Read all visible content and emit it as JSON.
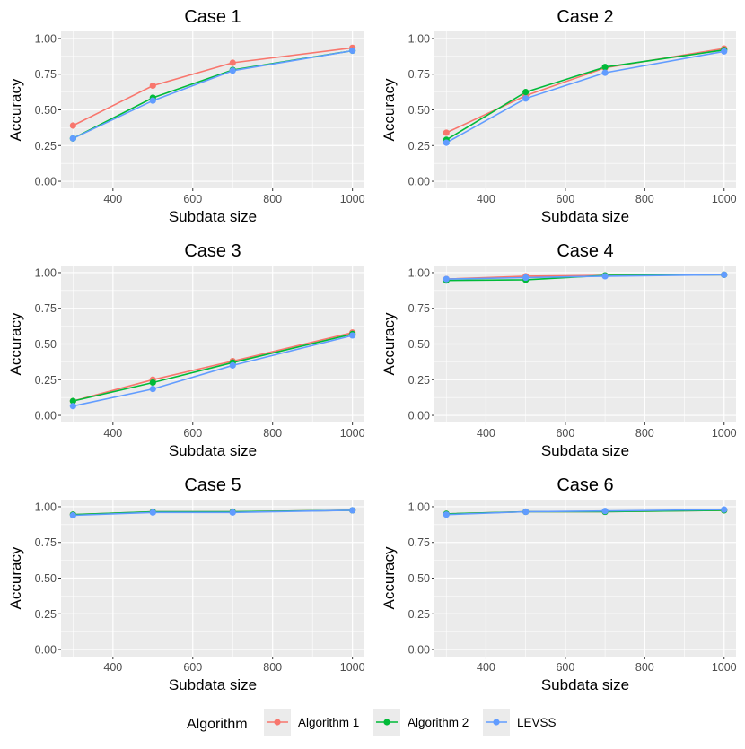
{
  "chart_data": {
    "type": "line",
    "layout": "facet-grid 3 rows x 2 columns",
    "x": [
      300,
      500,
      700,
      1000
    ],
    "xlabel": "Subdata size",
    "ylabel": "Accuracy",
    "xlim": [
      270,
      1030
    ],
    "ylim": [
      -0.05,
      1.05
    ],
    "x_ticks": [
      "400",
      "600",
      "800",
      "1000"
    ],
    "y_ticks": [
      "0.00",
      "0.25",
      "0.50",
      "0.75",
      "1.00"
    ],
    "grid": true,
    "legend": {
      "title": "Algorithm",
      "position": "bottom",
      "entries": [
        {
          "name": "Algorithm 1",
          "color": "#F8766D"
        },
        {
          "name": "Algorithm 2",
          "color": "#00BA38"
        },
        {
          "name": "LEVSS",
          "color": "#619CFF"
        }
      ]
    },
    "panels": [
      {
        "title": "Case 1",
        "series": [
          {
            "name": "Algorithm 1",
            "values": [
              0.39,
              0.67,
              0.83,
              0.935
            ]
          },
          {
            "name": "Algorithm 2",
            "values": [
              0.3,
              0.585,
              0.78,
              0.915
            ]
          },
          {
            "name": "LEVSS",
            "values": [
              0.3,
              0.565,
              0.775,
              0.915
            ]
          }
        ]
      },
      {
        "title": "Case 2",
        "series": [
          {
            "name": "Algorithm 1",
            "values": [
              0.34,
              0.6,
              0.795,
              0.93
            ]
          },
          {
            "name": "Algorithm 2",
            "values": [
              0.29,
              0.625,
              0.8,
              0.92
            ]
          },
          {
            "name": "LEVSS",
            "values": [
              0.27,
              0.58,
              0.76,
              0.91
            ]
          }
        ]
      },
      {
        "title": "Case 3",
        "series": [
          {
            "name": "Algorithm 1",
            "values": [
              0.1,
              0.25,
              0.38,
              0.58
            ]
          },
          {
            "name": "Algorithm 2",
            "values": [
              0.1,
              0.23,
              0.37,
              0.57
            ]
          },
          {
            "name": "LEVSS",
            "values": [
              0.065,
              0.185,
              0.35,
              0.56
            ]
          }
        ]
      },
      {
        "title": "Case 4",
        "series": [
          {
            "name": "Algorithm 1",
            "values": [
              0.955,
              0.975,
              0.98,
              0.985
            ]
          },
          {
            "name": "Algorithm 2",
            "values": [
              0.945,
              0.95,
              0.98,
              0.985
            ]
          },
          {
            "name": "LEVSS",
            "values": [
              0.955,
              0.965,
              0.975,
              0.985
            ]
          }
        ]
      },
      {
        "title": "Case 5",
        "series": [
          {
            "name": "Algorithm 1",
            "values": [
              0.945,
              0.965,
              0.965,
              0.975
            ]
          },
          {
            "name": "Algorithm 2",
            "values": [
              0.945,
              0.965,
              0.965,
              0.975
            ]
          },
          {
            "name": "LEVSS",
            "values": [
              0.94,
              0.96,
              0.96,
              0.975
            ]
          }
        ]
      },
      {
        "title": "Case 6",
        "series": [
          {
            "name": "Algorithm 1",
            "values": [
              0.95,
              0.965,
              0.965,
              0.975
            ]
          },
          {
            "name": "Algorithm 2",
            "values": [
              0.95,
              0.965,
              0.965,
              0.975
            ]
          },
          {
            "name": "LEVSS",
            "values": [
              0.945,
              0.965,
              0.97,
              0.98
            ]
          }
        ]
      }
    ]
  }
}
